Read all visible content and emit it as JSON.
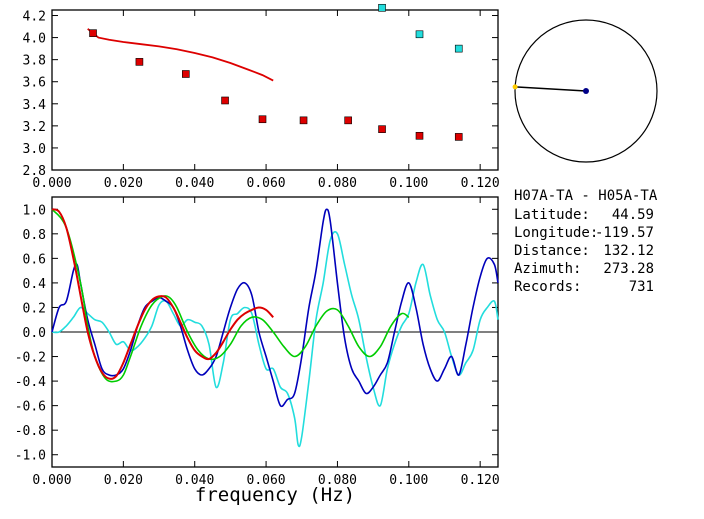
{
  "station_pair": "H07A-TA - H05A-TA",
  "info": [
    {
      "label": "Latitude:",
      "value": "44.59"
    },
    {
      "label": "Longitude:",
      "value": "-119.57"
    },
    {
      "label": "Distance:",
      "value": "132.12"
    },
    {
      "label": "Azimuth:",
      "value": "273.28"
    },
    {
      "label": "Records:",
      "value": "731"
    }
  ],
  "colors": {
    "red": "#dd0000",
    "cyan": "#22dddd",
    "blue": "#0000bb",
    "green": "#00cc00",
    "black": "#000000",
    "yellow": "#ffcc00",
    "navy": "#000088"
  },
  "chart_data": [
    {
      "type": "scatter",
      "xlim": [
        0.0,
        0.125
      ],
      "ylim": [
        2.8,
        4.25
      ],
      "xticks": [
        "0.000",
        "0.020",
        "0.040",
        "0.060",
        "0.080",
        "0.100",
        "0.120"
      ],
      "xtick_values": [
        0.0,
        0.02,
        0.04,
        0.06,
        0.08,
        0.1,
        0.12
      ],
      "yticks": [
        "2.8",
        "3.0",
        "3.2",
        "3.4",
        "3.6",
        "3.8",
        "4.0",
        "4.2"
      ],
      "ytick_values": [
        2.8,
        3.0,
        3.2,
        3.4,
        3.6,
        3.8,
        4.0,
        4.2
      ],
      "points_red": {
        "x": [
          0.0115,
          0.0245,
          0.0375,
          0.0485,
          0.059,
          0.0705,
          0.083,
          0.0925,
          0.103,
          0.114
        ],
        "y": [
          4.04,
          3.78,
          3.67,
          3.43,
          3.26,
          3.25,
          3.25,
          3.17,
          3.11,
          3.1
        ]
      },
      "points_cyan": {
        "x": [
          0.0925,
          0.103,
          0.114
        ],
        "y": [
          4.27,
          4.03,
          3.9
        ]
      },
      "red_curve": {
        "x": [
          0.01,
          0.013,
          0.016,
          0.02,
          0.025,
          0.03,
          0.035,
          0.04,
          0.045,
          0.05,
          0.055,
          0.059,
          0.062
        ],
        "y": [
          4.08,
          4.0,
          3.98,
          3.96,
          3.94,
          3.92,
          3.895,
          3.86,
          3.82,
          3.77,
          3.71,
          3.66,
          3.61
        ]
      }
    },
    {
      "type": "polar",
      "azimuth_deg": 273.28
    },
    {
      "type": "line",
      "xlabel": "frequency (Hz)",
      "xlim": [
        0.0,
        0.125
      ],
      "ylim": [
        -1.1,
        1.1
      ],
      "xticks": [
        "0.000",
        "0.020",
        "0.040",
        "0.060",
        "0.080",
        "0.100",
        "0.120"
      ],
      "xtick_values": [
        0.0,
        0.02,
        0.04,
        0.06,
        0.08,
        0.1,
        0.12
      ],
      "yticks": [
        "1.0",
        "0.8",
        "0.6",
        "0.4",
        "0.2",
        "0.0",
        "-0.2",
        "-0.4",
        "-0.6",
        "-0.8",
        "-1.0"
      ],
      "ytick_values": [
        1.0,
        0.8,
        0.6,
        0.4,
        0.2,
        0.0,
        -0.2,
        -0.4,
        -0.6,
        -0.8,
        -1.0
      ],
      "series": [
        {
          "color": "#22dddd",
          "x": [
            0.0,
            0.002,
            0.004,
            0.006,
            0.008,
            0.01,
            0.012,
            0.014,
            0.016,
            0.018,
            0.02,
            0.022,
            0.024,
            0.026,
            0.028,
            0.03,
            0.032,
            0.034,
            0.036,
            0.038,
            0.04,
            0.042,
            0.044,
            0.046,
            0.048,
            0.05,
            0.052,
            0.054,
            0.056,
            0.058,
            0.06,
            0.062,
            0.064,
            0.066,
            0.068,
            0.069,
            0.07,
            0.072,
            0.074,
            0.076,
            0.078,
            0.08,
            0.082,
            0.084,
            0.086,
            0.088,
            0.09,
            0.092,
            0.094,
            0.096,
            0.098,
            0.1,
            0.102,
            0.104,
            0.106,
            0.108,
            0.11,
            0.112,
            0.114,
            0.116,
            0.118,
            0.12,
            0.122,
            0.124,
            0.125
          ],
          "y": [
            0.0,
            0.0,
            0.05,
            0.12,
            0.2,
            0.15,
            0.1,
            0.08,
            0.0,
            -0.1,
            -0.08,
            -0.15,
            -0.12,
            -0.05,
            0.05,
            0.22,
            0.25,
            0.15,
            0.05,
            0.1,
            0.08,
            0.05,
            -0.1,
            -0.45,
            -0.25,
            0.1,
            0.15,
            0.2,
            0.15,
            -0.1,
            -0.3,
            -0.3,
            -0.45,
            -0.5,
            -0.7,
            -0.92,
            -0.85,
            -0.4,
            0.1,
            0.4,
            0.75,
            0.8,
            0.55,
            0.3,
            0.1,
            -0.2,
            -0.45,
            -0.6,
            -0.3,
            -0.1,
            0.05,
            0.15,
            0.4,
            0.55,
            0.3,
            0.1,
            0.0,
            -0.2,
            -0.35,
            -0.25,
            -0.15,
            0.1,
            0.2,
            0.25,
            0.1
          ]
        },
        {
          "color": "#0000bb",
          "x": [
            0.0,
            0.002,
            0.004,
            0.006,
            0.007,
            0.008,
            0.01,
            0.012,
            0.014,
            0.016,
            0.018,
            0.02,
            0.022,
            0.024,
            0.026,
            0.028,
            0.03,
            0.032,
            0.034,
            0.036,
            0.038,
            0.04,
            0.042,
            0.044,
            0.046,
            0.048,
            0.05,
            0.052,
            0.054,
            0.056,
            0.058,
            0.06,
            0.062,
            0.064,
            0.066,
            0.068,
            0.07,
            0.072,
            0.074,
            0.076,
            0.077,
            0.078,
            0.08,
            0.082,
            0.084,
            0.086,
            0.088,
            0.09,
            0.092,
            0.094,
            0.096,
            0.098,
            0.1,
            0.102,
            0.104,
            0.106,
            0.108,
            0.11,
            0.112,
            0.114,
            0.116,
            0.118,
            0.12,
            0.122,
            0.124,
            0.125
          ],
          "y": [
            0.0,
            0.2,
            0.25,
            0.5,
            0.55,
            0.4,
            0.1,
            -0.1,
            -0.3,
            -0.35,
            -0.35,
            -0.3,
            -0.15,
            0.05,
            0.2,
            0.25,
            0.28,
            0.25,
            0.2,
            0.05,
            -0.15,
            -0.3,
            -0.35,
            -0.3,
            -0.2,
            0.0,
            0.2,
            0.35,
            0.4,
            0.3,
            0.0,
            -0.2,
            -0.4,
            -0.6,
            -0.55,
            -0.5,
            -0.2,
            0.2,
            0.5,
            0.9,
            1.0,
            0.9,
            0.4,
            -0.05,
            -0.3,
            -0.4,
            -0.5,
            -0.45,
            -0.35,
            -0.25,
            0.0,
            0.25,
            0.4,
            0.2,
            -0.1,
            -0.3,
            -0.4,
            -0.3,
            -0.2,
            -0.35,
            -0.1,
            0.2,
            0.45,
            0.6,
            0.55,
            0.4
          ]
        },
        {
          "color": "#00cc00",
          "x": [
            0.0,
            0.004,
            0.008,
            0.01,
            0.012,
            0.015,
            0.018,
            0.02,
            0.022,
            0.025,
            0.028,
            0.031,
            0.033,
            0.035,
            0.038,
            0.041,
            0.044,
            0.047,
            0.05,
            0.053,
            0.056,
            0.059,
            0.062,
            0.065,
            0.068,
            0.071,
            0.074,
            0.077,
            0.08,
            0.083,
            0.086,
            0.089,
            0.092,
            0.095,
            0.098,
            0.1
          ],
          "y": [
            1.0,
            0.85,
            0.4,
            0.05,
            -0.2,
            -0.38,
            -0.4,
            -0.35,
            -0.2,
            0.05,
            0.22,
            0.29,
            0.28,
            0.2,
            0.0,
            -0.15,
            -0.22,
            -0.2,
            -0.1,
            0.05,
            0.12,
            0.1,
            0.0,
            -0.12,
            -0.2,
            -0.12,
            0.05,
            0.17,
            0.18,
            0.05,
            -0.12,
            -0.2,
            -0.12,
            0.05,
            0.15,
            0.12
          ]
        },
        {
          "color": "#dd0000",
          "x": [
            0.0,
            0.002,
            0.004,
            0.006,
            0.008,
            0.01,
            0.012,
            0.014,
            0.016,
            0.018,
            0.02,
            0.022,
            0.024,
            0.026,
            0.028,
            0.03,
            0.032,
            0.034,
            0.036,
            0.038,
            0.04,
            0.042,
            0.044,
            0.046,
            0.048,
            0.05,
            0.052,
            0.054,
            0.056,
            0.058,
            0.06,
            0.062
          ],
          "y": [
            1.0,
            0.98,
            0.85,
            0.6,
            0.3,
            0.0,
            -0.2,
            -0.33,
            -0.38,
            -0.36,
            -0.25,
            -0.1,
            0.05,
            0.18,
            0.26,
            0.29,
            0.28,
            0.2,
            0.08,
            -0.05,
            -0.15,
            -0.2,
            -0.22,
            -0.17,
            -0.08,
            0.02,
            0.1,
            0.15,
            0.18,
            0.2,
            0.18,
            0.12
          ]
        }
      ]
    }
  ]
}
